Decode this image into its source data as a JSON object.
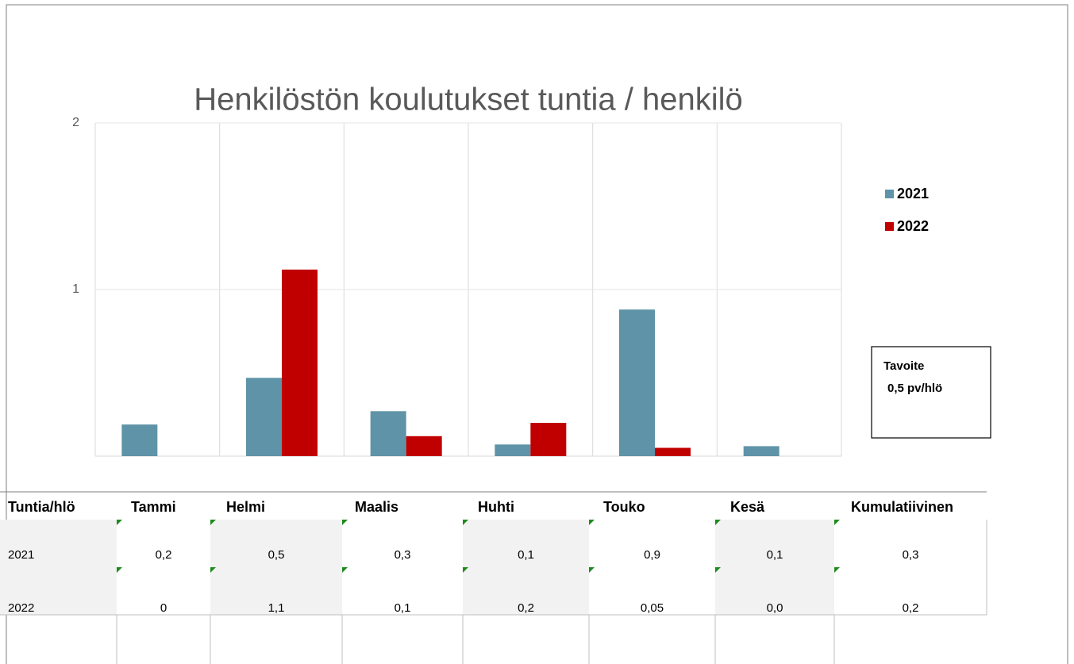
{
  "chart_data": {
    "type": "bar",
    "title": "Henkilöstön koulutukset tuntia / henkilö",
    "categories": [
      "Tammi",
      "Helmi",
      "Maalis",
      "Huhti",
      "Touko",
      "Kesä"
    ],
    "series": [
      {
        "name": "2021",
        "color": "#5f93a8",
        "values": [
          0.19,
          0.47,
          0.27,
          0.07,
          0.88,
          0.06
        ]
      },
      {
        "name": "2022",
        "color": "#c00000",
        "values": [
          0,
          1.12,
          0.12,
          0.2,
          0.05,
          0
        ]
      }
    ],
    "ylim": [
      0,
      2
    ],
    "yticks": [
      1,
      2
    ],
    "grid": true,
    "legend": "right",
    "annotation": [
      "Tavoite",
      "0,5 pv/hlö"
    ]
  },
  "table": {
    "corner": "Tuntia/hlö",
    "extra_header": "Kumulatiivinen",
    "rows": [
      [
        "0,2",
        "0,5",
        "0,3",
        "0,1",
        "0,9",
        "0,1",
        "0,3"
      ],
      [
        "0",
        "1,1",
        "0,1",
        "0,2",
        "0,05",
        "0,0",
        "0,2"
      ]
    ]
  }
}
